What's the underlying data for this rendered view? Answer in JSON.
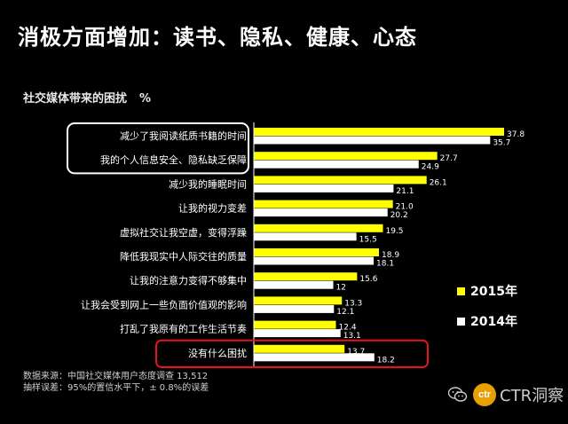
{
  "page": {
    "title": "消极方面增加：读书、隐私、健康、心态"
  },
  "chart_data": {
    "type": "bar",
    "orientation": "horizontal",
    "title": "社交媒体带来的困扰",
    "unit": "%",
    "categories": [
      "减少了我阅读纸质书籍的时间",
      "我的个人信息安全、隐私缺乏保障",
      "减少我的睡眠时间",
      "让我的视力变差",
      "虚拟社交让我空虚，变得浮躁",
      "降低我现实中人际交往的质量",
      "让我的注意力变得不够集中",
      "让我会受到网上一些负面价值观的影响",
      "打乱了我原有的工作生活节奏",
      "没有什么困扰"
    ],
    "series": [
      {
        "name": "2015年",
        "color": "#ffff00",
        "values": [
          37.8,
          27.7,
          26.1,
          21.0,
          19.5,
          18.9,
          15.6,
          13.3,
          12.4,
          13.7
        ]
      },
      {
        "name": "2014年",
        "color": "#ffffff",
        "values": [
          35.7,
          24.9,
          21.1,
          20.2,
          15.5,
          18.1,
          12,
          12.1,
          13.1,
          18.2
        ]
      }
    ],
    "value_labels": [
      [
        "37.8",
        "27.7",
        "26.1",
        "21.0",
        "19.5",
        "18.9",
        "15.6",
        "13.3",
        "12.4",
        "13.7"
      ],
      [
        "35.7",
        "24.9",
        "21.1",
        "20.2",
        "15.5",
        "18.1",
        "12",
        "12.1",
        "13.1",
        "18.2"
      ]
    ],
    "xlim": [
      0,
      40
    ],
    "grid": false,
    "legend": "bottom-right",
    "highlighted_categories": {
      "white_box": [
        0,
        1
      ],
      "red_box": [
        9
      ]
    }
  },
  "footnote": {
    "line1": "数据来源：中国社交媒体用户态度调查  13,512",
    "line2": "抽样误差：95%的置信水平下，± 0.8%的误差"
  },
  "watermark": {
    "logo_text": "ctr",
    "text": "CTR洞察",
    "logo_color": "#e8a000"
  }
}
